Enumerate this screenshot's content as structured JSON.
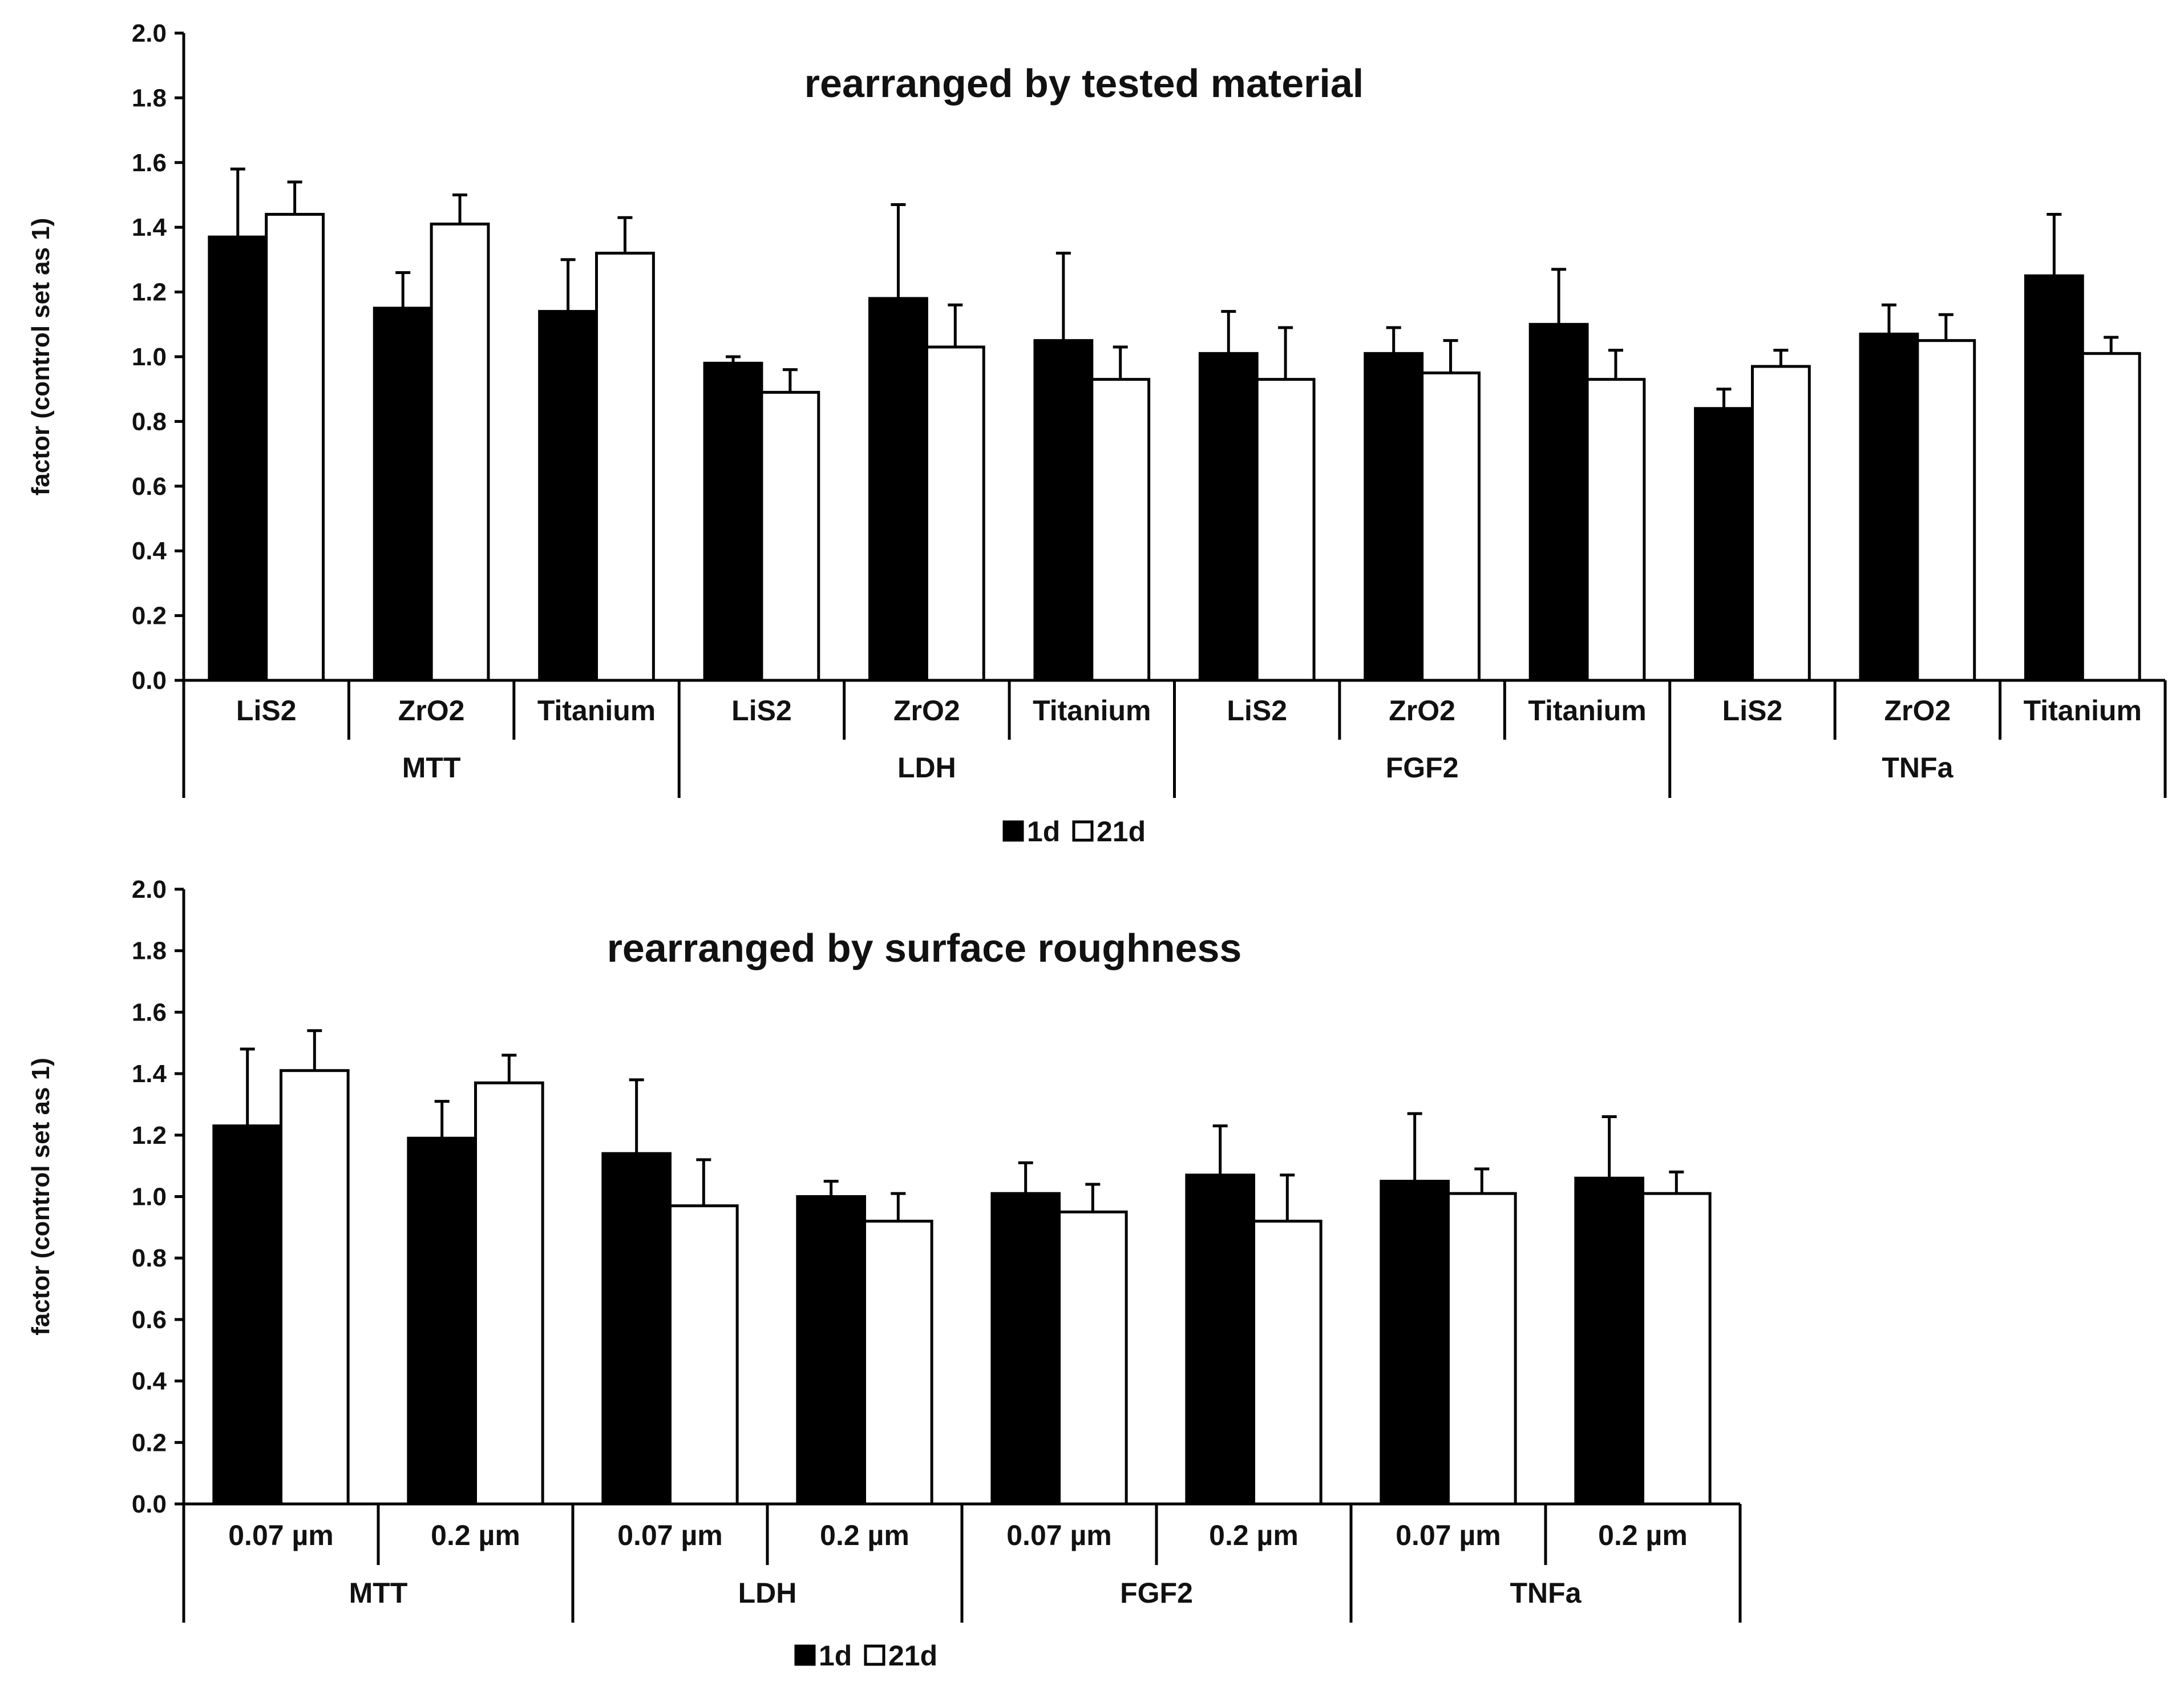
{
  "colors": {
    "series_1d": "#000000",
    "series_21d": "#ffffff",
    "axis": "#000000"
  },
  "chart_data": [
    {
      "type": "bar",
      "title": "rearranged by tested material",
      "ylabel": "factor (control set as 1)",
      "ylim": [
        0,
        2.0
      ],
      "yticks": [
        "0.0",
        "0.2",
        "0.4",
        "0.6",
        "0.8",
        "1.0",
        "1.2",
        "1.4",
        "1.6",
        "1.8",
        "2.0"
      ],
      "groups": [
        "MTT",
        "LDH",
        "FGF2",
        "TNFa"
      ],
      "categories": [
        "LiS2",
        "ZrO2",
        "Titanium",
        "LiS2",
        "ZrO2",
        "Titanium",
        "LiS2",
        "ZrO2",
        "Titanium",
        "LiS2",
        "ZrO2",
        "Titanium"
      ],
      "series": [
        {
          "name": "1d",
          "values": [
            1.37,
            1.15,
            1.14,
            0.98,
            1.18,
            1.05,
            1.01,
            1.01,
            1.1,
            0.84,
            1.07,
            1.25
          ],
          "errors": [
            0.21,
            0.11,
            0.16,
            0.02,
            0.29,
            0.27,
            0.13,
            0.08,
            0.17,
            0.06,
            0.09,
            0.19
          ]
        },
        {
          "name": "21d",
          "values": [
            1.44,
            1.41,
            1.32,
            0.89,
            1.03,
            0.93,
            0.93,
            0.95,
            0.93,
            0.97,
            1.05,
            1.01
          ],
          "errors": [
            0.1,
            0.09,
            0.11,
            0.07,
            0.13,
            0.1,
            0.16,
            0.1,
            0.09,
            0.05,
            0.08,
            0.05
          ]
        }
      ],
      "legend": {
        "position": "bottom",
        "entries": [
          "1d",
          "21d"
        ]
      }
    },
    {
      "type": "bar",
      "title": "rearranged by surface roughness",
      "ylabel": "factor (control set as 1)",
      "ylim": [
        0,
        2.0
      ],
      "yticks": [
        "0.0",
        "0.2",
        "0.4",
        "0.6",
        "0.8",
        "1.0",
        "1.2",
        "1.4",
        "1.6",
        "1.8",
        "2.0"
      ],
      "groups": [
        "MTT",
        "LDH",
        "FGF2",
        "TNFa"
      ],
      "categories": [
        "0.07 µm",
        "0.2 µm",
        "0.07 µm",
        "0.2 µm",
        "0.07 µm",
        "0.2 µm",
        "0.07 µm",
        "0.2 µm"
      ],
      "series": [
        {
          "name": "1d",
          "values": [
            1.23,
            1.19,
            1.14,
            1.0,
            1.01,
            1.07,
            1.05,
            1.06
          ],
          "errors": [
            0.25,
            0.12,
            0.24,
            0.05,
            0.1,
            0.16,
            0.22,
            0.2
          ]
        },
        {
          "name": "21d",
          "values": [
            1.41,
            1.37,
            0.97,
            0.92,
            0.95,
            0.92,
            1.01,
            1.01
          ],
          "errors": [
            0.13,
            0.09,
            0.15,
            0.09,
            0.09,
            0.15,
            0.08,
            0.07
          ]
        }
      ],
      "legend": {
        "position": "bottom",
        "entries": [
          "1d",
          "21d"
        ]
      }
    }
  ]
}
